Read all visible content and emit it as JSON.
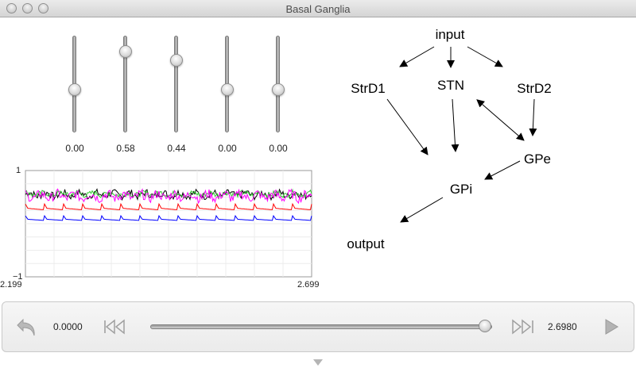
{
  "window": {
    "title": "Basal Ganglia"
  },
  "sliders": [
    {
      "label": "0.00",
      "value": 0.0
    },
    {
      "label": "0.58",
      "value": 0.58
    },
    {
      "label": "0.44",
      "value": 0.44
    },
    {
      "label": "0.00",
      "value": 0.0
    },
    {
      "label": "0.00",
      "value": 0.0
    }
  ],
  "chart_data": {
    "type": "line",
    "title": "",
    "xlabel": "",
    "ylabel": "",
    "xlim": [
      2.199,
      2.699
    ],
    "ylim": [
      -1,
      1
    ],
    "x_tick_labels": [
      "2.199",
      "2.699"
    ],
    "y_tick_labels": [
      "1",
      "−1"
    ],
    "grid": true,
    "series": [
      {
        "name": "black",
        "color": "#000000",
        "mean": 0.55,
        "noise": 0.07
      },
      {
        "name": "green",
        "color": "#33cc33",
        "mean": 0.56,
        "noise": 0.05
      },
      {
        "name": "magenta",
        "color": "#ff00ff",
        "mean": 0.52,
        "noise": 0.09
      },
      {
        "name": "red",
        "color": "#ff0000",
        "mean": 0.26,
        "noise": 0.05
      },
      {
        "name": "blue",
        "color": "#0000ff",
        "mean": 0.06,
        "noise": 0.04
      }
    ]
  },
  "network": {
    "nodes": [
      "input",
      "StrD1",
      "STN",
      "StrD2",
      "GPe",
      "GPi",
      "output"
    ]
  },
  "controls": {
    "start_time": "0.0000",
    "end_time": "2.6980",
    "position": 0.98
  },
  "icons": {
    "reset": "undo-arrow-icon",
    "rewind": "skip-to-start-icon",
    "forward": "skip-to-end-icon",
    "play": "play-icon",
    "collapse": "chevron-down-icon"
  }
}
